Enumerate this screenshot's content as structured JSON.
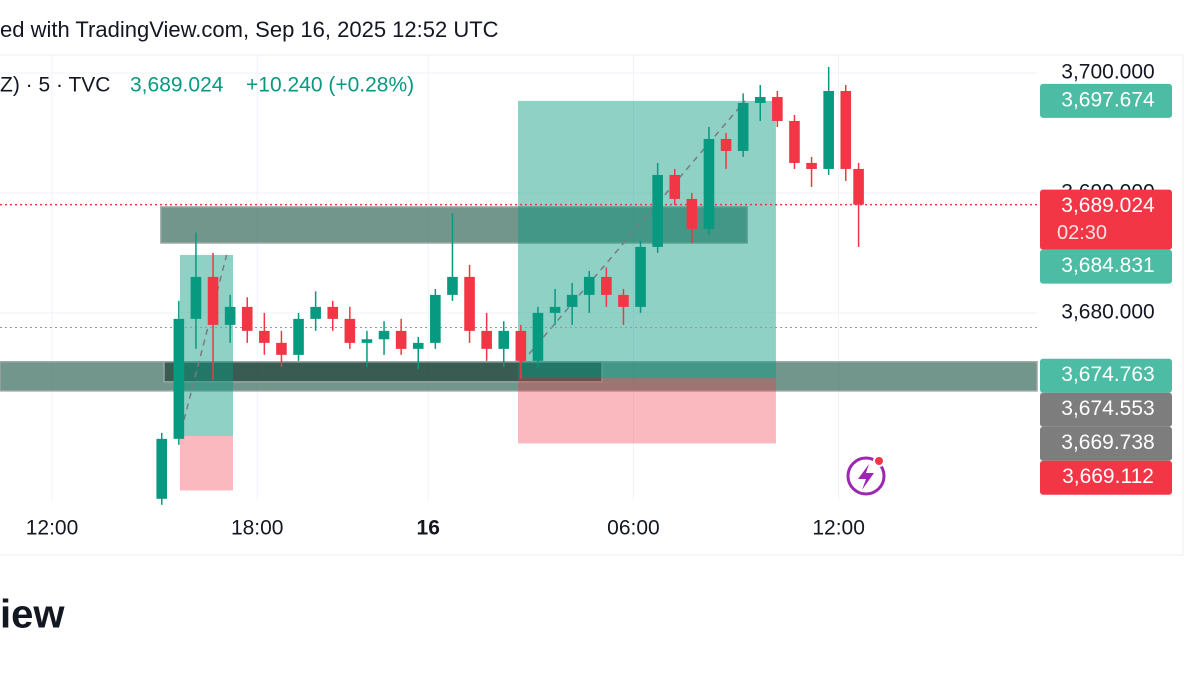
{
  "chart_data": {
    "type": "candlestick",
    "header_text": "ed with TradingView.com, Sep 16, 2025 12:52 UTC",
    "symbol": "Z) · 5 · TVC",
    "last": "3,689.024",
    "change": "+10.240 (+0.28%)",
    "footer_text": "iew",
    "up_color": "#089981",
    "down_color": "#f23645",
    "grid": true,
    "xlim": [
      -18.25,
      345.6
    ],
    "ylim": [
      3664.4,
      3701.5
    ],
    "xticks": [
      {
        "value": 0,
        "label": "12:00"
      },
      {
        "value": 72,
        "label": "18:00"
      },
      {
        "value": 132,
        "label": "16"
      },
      {
        "value": 204,
        "label": "06:00"
      },
      {
        "value": 276,
        "label": "12:00"
      }
    ],
    "yticks": [
      {
        "value": 3700,
        "label": "3,700.000"
      },
      {
        "value": 3690,
        "label": "3,690.000"
      },
      {
        "value": 3680,
        "label": "3,680.000"
      }
    ],
    "candles": {
      "x": [
        38.5,
        44.5,
        50.5,
        56.5,
        62.5,
        68.5,
        74.5,
        80.5,
        86.5,
        92.5,
        98.5,
        104.5,
        110.5,
        116.5,
        122.5,
        128.5,
        134.5,
        140.5,
        146.5,
        152.5,
        158.5,
        164.5,
        170.5,
        176.5,
        182.5,
        188.5,
        194.5,
        200.5,
        206.5,
        212.5,
        218.5,
        224.5,
        230.5,
        236.5,
        242.5,
        248.5,
        254.5,
        260.5,
        266.5,
        272.5,
        278.5,
        283
      ],
      "open": [
        3664.5,
        3669.5,
        3679.5,
        3683,
        3679,
        3680.5,
        3678.5,
        3677.5,
        3676.5,
        3679.5,
        3680.5,
        3679.5,
        3677.5,
        3677.8,
        3678.5,
        3677,
        3677.5,
        3681.5,
        3683,
        3678.5,
        3677,
        3678.5,
        3676,
        3680,
        3680.5,
        3681.5,
        3683,
        3681.5,
        3680.5,
        3685.5,
        3691.5,
        3689.5,
        3687,
        3694.5,
        3693.5,
        3697.5,
        3698,
        3696,
        3692.5,
        3692,
        3698.5,
        3692
      ],
      "high": [
        3670,
        3681,
        3686.7,
        3685,
        3681.5,
        3681.3,
        3680,
        3678.5,
        3680,
        3681.8,
        3681,
        3680.5,
        3678.5,
        3679.3,
        3679.5,
        3678,
        3682,
        3688.3,
        3684,
        3680,
        3679.3,
        3679,
        3680.5,
        3682,
        3682.5,
        3683.5,
        3683.8,
        3682,
        3686,
        3692.5,
        3692,
        3690,
        3695.5,
        3695,
        3698.3,
        3699,
        3698.5,
        3696.5,
        3693,
        3700.5,
        3699,
        3692.5
      ],
      "low": [
        3664,
        3669,
        3677,
        3674.4,
        3677.5,
        3677.5,
        3676.5,
        3675.5,
        3676,
        3678.5,
        3678.5,
        3677,
        3675.5,
        3676.5,
        3676.5,
        3675.3,
        3677,
        3681,
        3677.5,
        3676,
        3675.5,
        3674.5,
        3675.5,
        3679,
        3679,
        3680,
        3680.5,
        3679,
        3680,
        3685,
        3689,
        3685.8,
        3686.5,
        3692,
        3693,
        3696,
        3695.5,
        3692,
        3690.5,
        3691.5,
        3691,
        3685.5
      ],
      "close": [
        3669.5,
        3679.5,
        3683,
        3679,
        3680.5,
        3678.5,
        3677.5,
        3676.5,
        3679.5,
        3680.5,
        3679.5,
        3677.5,
        3677.8,
        3678.5,
        3677,
        3677.5,
        3681.5,
        3683,
        3678.5,
        3677,
        3678.5,
        3676,
        3680,
        3680.5,
        3681.5,
        3683,
        3681.5,
        3680.5,
        3685.5,
        3691.5,
        3689.5,
        3687,
        3694.5,
        3693.5,
        3697.5,
        3698,
        3696,
        3692.5,
        3692,
        3698.5,
        3692,
        3689.024
      ]
    },
    "zones": [
      {
        "x0": -18.25,
        "x1": 345.6,
        "top": 3675.92,
        "bottom": 3673.5,
        "color": "#2f6355"
      },
      {
        "x0": 38.2,
        "x1": 243.9,
        "top": 3688.83,
        "bottom": 3685.83,
        "color": "#2f6355"
      },
      {
        "x0": 39.3,
        "x1": 193,
        "top": 3675.92,
        "bottom": 3674.25,
        "color": "#1e3f37"
      }
    ],
    "positions": [
      {
        "x0": 44.9,
        "x1": 63.5,
        "target": 3684.831,
        "entry": 3669.738,
        "stop": 3665.2
      },
      {
        "x0": 163.5,
        "x1": 254,
        "target": 3697.674,
        "entry": 3674.553,
        "stop": 3669.112
      }
    ],
    "last_price_line": 3689.024,
    "prev_close_line": 3678.784,
    "price_labels": [
      {
        "value": 3697.674,
        "label": "3,697.674",
        "color": "#4cbca4"
      },
      {
        "value": 3689.024,
        "label": "3,689.024",
        "color": "#f23645",
        "countdown": "02:30"
      },
      {
        "value": 3684.831,
        "label": "3,684.831",
        "color": "#4cbca4"
      },
      {
        "value": 3674.763,
        "label": "3,674.763",
        "color": "#4cbca4"
      },
      {
        "value": 3674.553,
        "label": "3,674.553",
        "color": "#7d7d7d"
      },
      {
        "value": 3669.738,
        "label": "3,669.738",
        "color": "#7d7d7d"
      },
      {
        "value": 3669.112,
        "label": "3,669.112",
        "color": "#f23645"
      }
    ]
  }
}
